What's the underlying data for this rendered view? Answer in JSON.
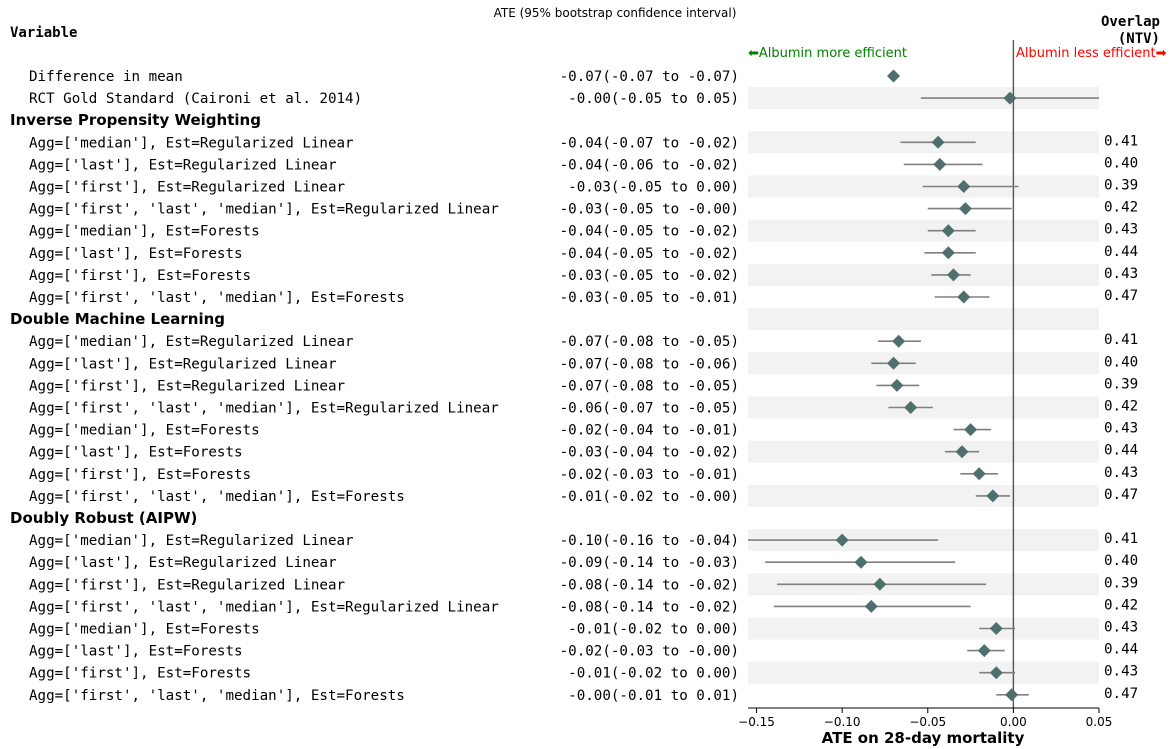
{
  "chart_data": {
    "type": "forest",
    "title": "ATE (95% bootstrap confidence interval)",
    "xlabel": "ATE on 28-day mortality",
    "variable_header": "Variable",
    "overlap_header": [
      "Overlap",
      "(NTV)"
    ],
    "annotation_left": "⬅Albumin more efficient",
    "annotation_right": "Albumin less efficient➡",
    "xlim": [
      -0.155,
      0.05
    ],
    "xticks": [
      -0.15,
      -0.1,
      -0.05,
      0.0,
      0.05
    ],
    "xtick_labels": [
      "−0.15",
      "−0.10",
      "−0.05",
      "0.00",
      "0.05"
    ],
    "reference_line_x": 0,
    "colors": {
      "marker": "#4f6f6c",
      "ci": "#808080",
      "band": "#f2f2f2",
      "left_annotation": "#008000",
      "right_annotation": "#ff0000"
    },
    "rows": [
      {
        "kind": "item",
        "label": "Difference in mean",
        "ci_text": "-0.07(-0.07 to -0.07)",
        "est": -0.07,
        "lo": -0.07,
        "hi": -0.07,
        "overlap": ""
      },
      {
        "kind": "item",
        "label": "RCT Gold Standard (Caironi et al. 2014)",
        "ci_text": "-0.00(-0.05 to  0.05)",
        "est": -0.002,
        "lo": -0.054,
        "hi": 0.05,
        "overlap": ""
      },
      {
        "kind": "header",
        "label": "Inverse Propensity Weighting"
      },
      {
        "kind": "item",
        "label": "Agg=['median'], Est=Regularized Linear",
        "ci_text": "-0.04(-0.07 to -0.02)",
        "est": -0.044,
        "lo": -0.066,
        "hi": -0.022,
        "overlap": "0.41"
      },
      {
        "kind": "item",
        "label": "Agg=['last'], Est=Regularized Linear",
        "ci_text": "-0.04(-0.06 to -0.02)",
        "est": -0.043,
        "lo": -0.064,
        "hi": -0.018,
        "overlap": "0.40"
      },
      {
        "kind": "item",
        "label": "Agg=['first'], Est=Regularized Linear",
        "ci_text": "-0.03(-0.05 to  0.00)",
        "est": -0.029,
        "lo": -0.053,
        "hi": 0.003,
        "overlap": "0.39"
      },
      {
        "kind": "item",
        "label": "Agg=['first', 'last', 'median'], Est=Regularized Linear",
        "ci_text": "-0.03(-0.05 to -0.00)",
        "est": -0.028,
        "lo": -0.05,
        "hi": -0.001,
        "overlap": "0.42"
      },
      {
        "kind": "item",
        "label": "Agg=['median'], Est=Forests",
        "ci_text": "-0.04(-0.05 to -0.02)",
        "est": -0.038,
        "lo": -0.05,
        "hi": -0.022,
        "overlap": "0.43"
      },
      {
        "kind": "item",
        "label": "Agg=['last'], Est=Forests",
        "ci_text": "-0.04(-0.05 to -0.02)",
        "est": -0.038,
        "lo": -0.052,
        "hi": -0.022,
        "overlap": "0.44"
      },
      {
        "kind": "item",
        "label": "Agg=['first'], Est=Forests",
        "ci_text": "-0.03(-0.05 to -0.02)",
        "est": -0.035,
        "lo": -0.048,
        "hi": -0.025,
        "overlap": "0.43"
      },
      {
        "kind": "item",
        "label": "Agg=['first', 'last', 'median'], Est=Forests",
        "ci_text": "-0.03(-0.05 to -0.01)",
        "est": -0.029,
        "lo": -0.046,
        "hi": -0.014,
        "overlap": "0.47"
      },
      {
        "kind": "header",
        "label": "Double Machine Learning"
      },
      {
        "kind": "item",
        "label": "Agg=['median'], Est=Regularized Linear",
        "ci_text": "-0.07(-0.08 to -0.05)",
        "est": -0.067,
        "lo": -0.079,
        "hi": -0.054,
        "overlap": "0.41"
      },
      {
        "kind": "item",
        "label": "Agg=['last'], Est=Regularized Linear",
        "ci_text": "-0.07(-0.08 to -0.06)",
        "est": -0.07,
        "lo": -0.083,
        "hi": -0.057,
        "overlap": "0.40"
      },
      {
        "kind": "item",
        "label": "Agg=['first'], Est=Regularized Linear",
        "ci_text": "-0.07(-0.08 to -0.05)",
        "est": -0.068,
        "lo": -0.08,
        "hi": -0.055,
        "overlap": "0.39"
      },
      {
        "kind": "item",
        "label": "Agg=['first', 'last', 'median'], Est=Regularized Linear",
        "ci_text": "-0.06(-0.07 to -0.05)",
        "est": -0.06,
        "lo": -0.073,
        "hi": -0.047,
        "overlap": "0.42"
      },
      {
        "kind": "item",
        "label": "Agg=['median'], Est=Forests",
        "ci_text": "-0.02(-0.04 to -0.01)",
        "est": -0.025,
        "lo": -0.035,
        "hi": -0.013,
        "overlap": "0.43"
      },
      {
        "kind": "item",
        "label": "Agg=['last'], Est=Forests",
        "ci_text": "-0.03(-0.04 to -0.02)",
        "est": -0.03,
        "lo": -0.04,
        "hi": -0.02,
        "overlap": "0.44"
      },
      {
        "kind": "item",
        "label": "Agg=['first'], Est=Forests",
        "ci_text": "-0.02(-0.03 to -0.01)",
        "est": -0.02,
        "lo": -0.031,
        "hi": -0.009,
        "overlap": "0.43"
      },
      {
        "kind": "item",
        "label": "Agg=['first', 'last', 'median'], Est=Forests",
        "ci_text": "-0.01(-0.02 to -0.00)",
        "est": -0.012,
        "lo": -0.022,
        "hi": -0.002,
        "overlap": "0.47"
      },
      {
        "kind": "header",
        "label": "Doubly Robust (AIPW)"
      },
      {
        "kind": "item",
        "label": "Agg=['median'], Est=Regularized Linear",
        "ci_text": "-0.10(-0.16 to -0.04)",
        "est": -0.1,
        "lo": -0.156,
        "hi": -0.044,
        "overlap": "0.41"
      },
      {
        "kind": "item",
        "label": "Agg=['last'], Est=Regularized Linear",
        "ci_text": "-0.09(-0.14 to -0.03)",
        "est": -0.089,
        "lo": -0.145,
        "hi": -0.034,
        "overlap": "0.40"
      },
      {
        "kind": "item",
        "label": "Agg=['first'], Est=Regularized Linear",
        "ci_text": "-0.08(-0.14 to -0.02)",
        "est": -0.078,
        "lo": -0.138,
        "hi": -0.016,
        "overlap": "0.39"
      },
      {
        "kind": "item",
        "label": "Agg=['first', 'last', 'median'], Est=Regularized Linear",
        "ci_text": "-0.08(-0.14 to -0.02)",
        "est": -0.083,
        "lo": -0.14,
        "hi": -0.025,
        "overlap": "0.42"
      },
      {
        "kind": "item",
        "label": "Agg=['median'], Est=Forests",
        "ci_text": "-0.01(-0.02 to  0.00)",
        "est": -0.01,
        "lo": -0.02,
        "hi": 0.001,
        "overlap": "0.43"
      },
      {
        "kind": "item",
        "label": "Agg=['last'], Est=Forests",
        "ci_text": "-0.02(-0.03 to -0.00)",
        "est": -0.017,
        "lo": -0.027,
        "hi": -0.005,
        "overlap": "0.44"
      },
      {
        "kind": "item",
        "label": "Agg=['first'], Est=Forests",
        "ci_text": "-0.01(-0.02 to  0.00)",
        "est": -0.01,
        "lo": -0.02,
        "hi": 0.001,
        "overlap": "0.43"
      },
      {
        "kind": "item",
        "label": "Agg=['first', 'last', 'median'], Est=Forests",
        "ci_text": "-0.00(-0.01 to  0.01)",
        "est": -0.001,
        "lo": -0.01,
        "hi": 0.009,
        "overlap": "0.47"
      }
    ]
  }
}
